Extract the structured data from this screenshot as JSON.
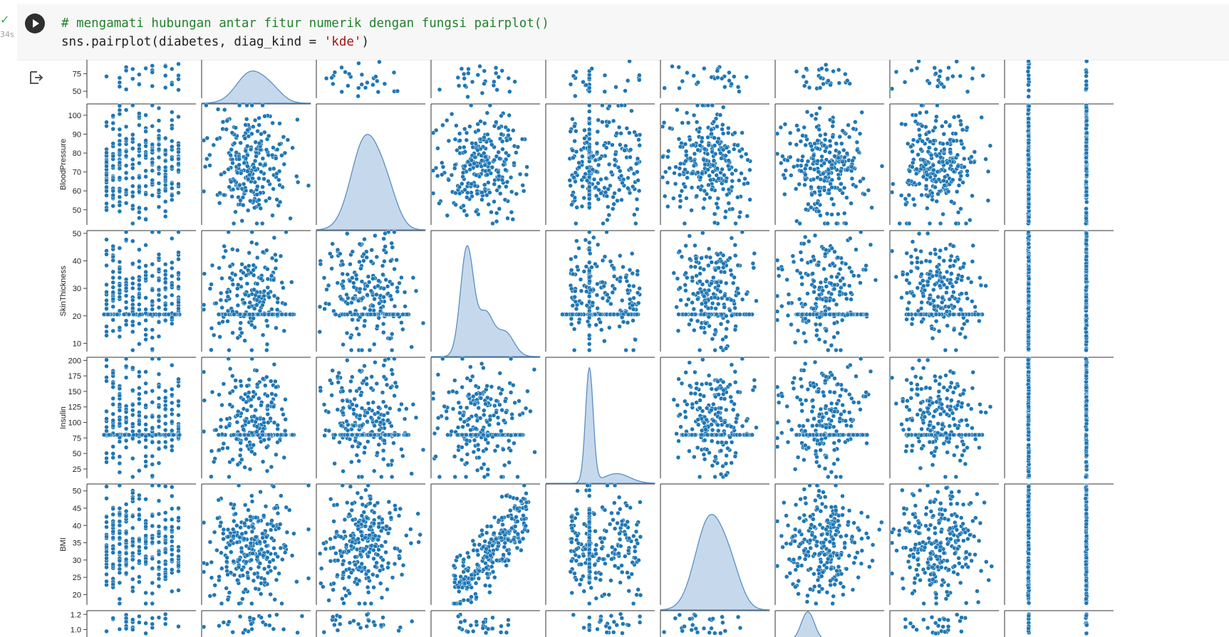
{
  "cell": {
    "status": "✓",
    "exec_time": "34s",
    "code_comment": "# mengamati hubungan antar fitur numerik dengan fungsi pairplot()",
    "code_part1": "sns.pairplot(diabetes, diag_kind = ",
    "code_string": "'kde'",
    "code_part2": ")"
  },
  "icons": {
    "run": "play-circle-icon",
    "output": "output-redirect-icon"
  },
  "colors": {
    "point": "#1f77b4",
    "kde_fill": "#c6d9ec",
    "kde_line": "#5a8fc2",
    "cell_bg": "#f7f7f7",
    "comment": "#23812d",
    "string": "#a31515"
  },
  "chart_data": {
    "type": "scatter",
    "subtype": "pairplot",
    "diag_kind": "kde",
    "visible_rows": [
      {
        "ylabel": "",
        "ticks": [
          "75",
          "50"
        ],
        "yrange": [
          40,
          95
        ],
        "partial": "top"
      },
      {
        "ylabel": "BloodPressure",
        "ticks": [
          "100",
          "90",
          "80",
          "70",
          "60",
          "50"
        ],
        "yrange": [
          42,
          106
        ]
      },
      {
        "ylabel": "SkinThickness",
        "ticks": [
          "50",
          "40",
          "30",
          "20",
          "10"
        ],
        "yrange": [
          7,
          51
        ]
      },
      {
        "ylabel": "Insulin",
        "ticks": [
          "200",
          "175",
          "150",
          "125",
          "100",
          "75",
          "50",
          "25"
        ],
        "yrange": [
          10,
          205
        ]
      },
      {
        "ylabel": "BMI",
        "ticks": [
          "50",
          "45",
          "40",
          "35",
          "30",
          "25",
          "20"
        ],
        "yrange": [
          17,
          52
        ]
      },
      {
        "ylabel": "",
        "ticks": [
          "1.2",
          "1.0"
        ],
        "yrange": [
          0.9,
          1.25
        ],
        "partial": "bottom"
      }
    ],
    "columns": 9,
    "correlations_to_bmi": {
      "SkinThickness": "positive"
    },
    "notes_visible": "Insulin column and row show a horizontal band of imputed values near 80; SkinThickness near 20"
  }
}
